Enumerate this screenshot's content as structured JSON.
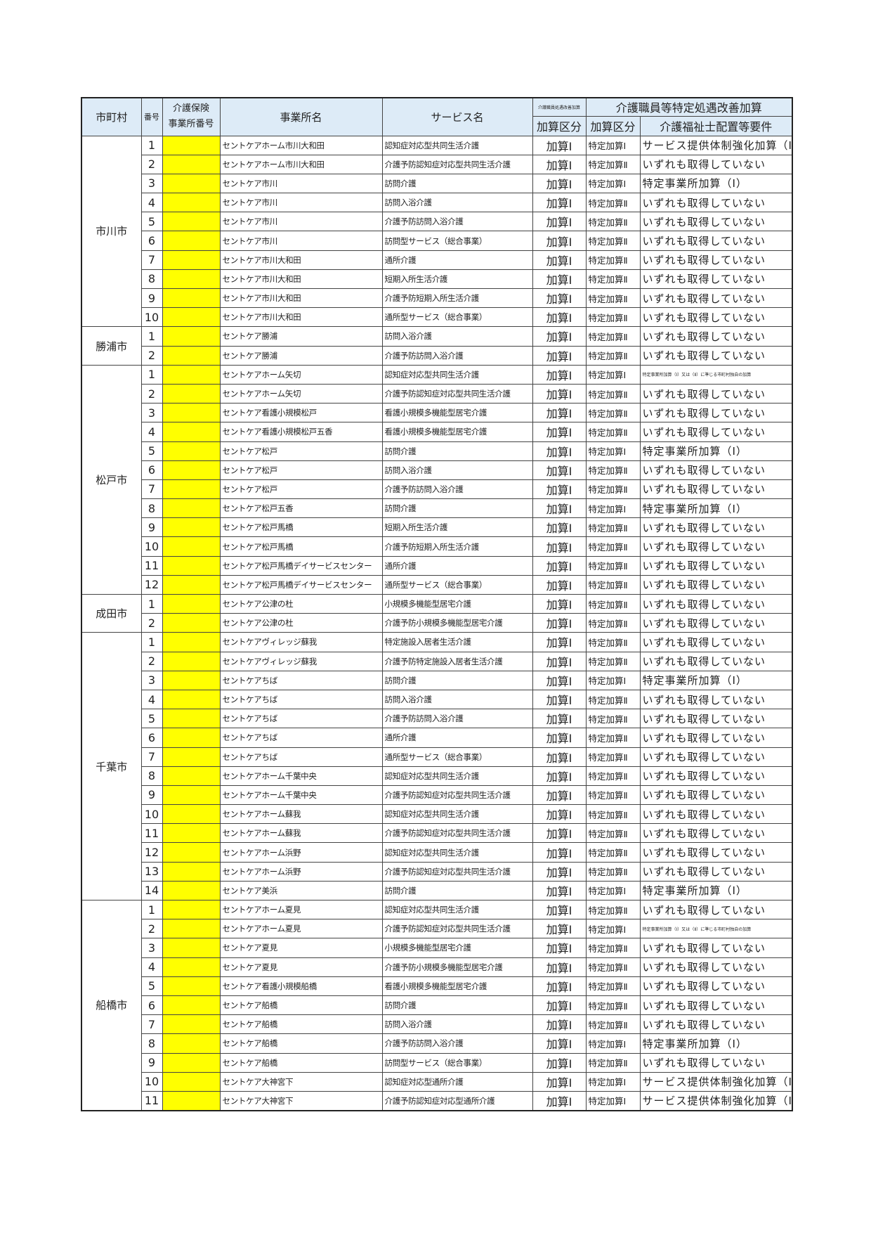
{
  "header": {
    "city": "市町村",
    "num": "番号",
    "code_line1": "介護保険",
    "code_line2": "事業所番号",
    "office": "事業所名",
    "service": "サービス名",
    "kaizen_small": "介護職員処遇改善加算",
    "tokutei_group": "介護職員等特定処遇改善加算",
    "kasan_kubun": "加算区分",
    "tokutei_kubun": "加算区分",
    "requirement": "介護福祉士配置等要件"
  },
  "colors": {
    "header_bg": "#ddebf7",
    "code_fill": "#ffff00"
  },
  "groups": [
    {
      "city": "市川市",
      "rows": [
        {
          "num": "1",
          "office": "セントケアホーム市川大和田",
          "service": "認知症対応型共同生活介護",
          "kasan": "加算Ⅰ",
          "tokutei": "特定加算Ⅰ",
          "req": "サービス提供体制強化加算（Ⅱ）"
        },
        {
          "num": "2",
          "office": "セントケアホーム市川大和田",
          "service": "介護予防認知症対応型共同生活介護",
          "kasan": "加算Ⅰ",
          "tokutei": "特定加算Ⅱ",
          "req": "いずれも取得していない"
        },
        {
          "num": "3",
          "office": "セントケア市川",
          "service": "訪問介護",
          "kasan": "加算Ⅰ",
          "tokutei": "特定加算Ⅰ",
          "req": "特定事業所加算（Ⅰ）"
        },
        {
          "num": "4",
          "office": "セントケア市川",
          "service": "訪問入浴介護",
          "kasan": "加算Ⅰ",
          "tokutei": "特定加算Ⅱ",
          "req": "いずれも取得していない"
        },
        {
          "num": "5",
          "office": "セントケア市川",
          "service": "介護予防訪問入浴介護",
          "kasan": "加算Ⅰ",
          "tokutei": "特定加算Ⅱ",
          "req": "いずれも取得していない"
        },
        {
          "num": "6",
          "office": "セントケア市川",
          "service": "訪問型サービス（総合事業）",
          "kasan": "加算Ⅰ",
          "tokutei": "特定加算Ⅱ",
          "req": "いずれも取得していない"
        },
        {
          "num": "7",
          "office": "セントケア市川大和田",
          "service": "通所介護",
          "kasan": "加算Ⅰ",
          "tokutei": "特定加算Ⅱ",
          "req": "いずれも取得していない"
        },
        {
          "num": "8",
          "office": "セントケア市川大和田",
          "service": "短期入所生活介護",
          "kasan": "加算Ⅰ",
          "tokutei": "特定加算Ⅱ",
          "req": "いずれも取得していない"
        },
        {
          "num": "9",
          "office": "セントケア市川大和田",
          "service": "介護予防短期入所生活介護",
          "kasan": "加算Ⅰ",
          "tokutei": "特定加算Ⅱ",
          "req": "いずれも取得していない"
        },
        {
          "num": "10",
          "office": "セントケア市川大和田",
          "service": "通所型サービス（総合事業）",
          "kasan": "加算Ⅰ",
          "tokutei": "特定加算Ⅱ",
          "req": "いずれも取得していない"
        }
      ]
    },
    {
      "city": "勝浦市",
      "rows": [
        {
          "num": "1",
          "office": "セントケア勝浦",
          "service": "訪問入浴介護",
          "kasan": "加算Ⅰ",
          "tokutei": "特定加算Ⅱ",
          "req": "いずれも取得していない"
        },
        {
          "num": "2",
          "office": "セントケア勝浦",
          "service": "介護予防訪問入浴介護",
          "kasan": "加算Ⅰ",
          "tokutei": "特定加算Ⅱ",
          "req": "いずれも取得していない"
        }
      ]
    },
    {
      "city": "松戸市",
      "rows": [
        {
          "num": "1",
          "office": "セントケアホーム矢切",
          "service": "認知症対応型共同生活介護",
          "kasan": "加算Ⅰ",
          "tokutei": "特定加算Ⅰ",
          "req": "特定事業所加算（Ⅰ）又は（Ⅱ）に準じる市町村独自の加算",
          "tiny": true
        },
        {
          "num": "2",
          "office": "セントケアホーム矢切",
          "service": "介護予防認知症対応型共同生活介護",
          "kasan": "加算Ⅰ",
          "tokutei": "特定加算Ⅱ",
          "req": "いずれも取得していない"
        },
        {
          "num": "3",
          "office": "セントケア看護小規模松戸",
          "service": "看護小規模多機能型居宅介護",
          "kasan": "加算Ⅰ",
          "tokutei": "特定加算Ⅱ",
          "req": "いずれも取得していない"
        },
        {
          "num": "4",
          "office": "セントケア看護小規模松戸五香",
          "service": "看護小規模多機能型居宅介護",
          "kasan": "加算Ⅰ",
          "tokutei": "特定加算Ⅱ",
          "req": "いずれも取得していない"
        },
        {
          "num": "5",
          "office": "セントケア松戸",
          "service": "訪問介護",
          "kasan": "加算Ⅰ",
          "tokutei": "特定加算Ⅰ",
          "req": "特定事業所加算（Ⅰ）"
        },
        {
          "num": "6",
          "office": "セントケア松戸",
          "service": "訪問入浴介護",
          "kasan": "加算Ⅰ",
          "tokutei": "特定加算Ⅱ",
          "req": "いずれも取得していない"
        },
        {
          "num": "7",
          "office": "セントケア松戸",
          "service": "介護予防訪問入浴介護",
          "kasan": "加算Ⅰ",
          "tokutei": "特定加算Ⅱ",
          "req": "いずれも取得していない"
        },
        {
          "num": "8",
          "office": "セントケア松戸五香",
          "service": "訪問介護",
          "kasan": "加算Ⅰ",
          "tokutei": "特定加算Ⅰ",
          "req": "特定事業所加算（Ⅰ）"
        },
        {
          "num": "9",
          "office": "セントケア松戸馬橋",
          "service": "短期入所生活介護",
          "kasan": "加算Ⅰ",
          "tokutei": "特定加算Ⅱ",
          "req": "いずれも取得していない"
        },
        {
          "num": "10",
          "office": "セントケア松戸馬橋",
          "service": "介護予防短期入所生活介護",
          "kasan": "加算Ⅰ",
          "tokutei": "特定加算Ⅱ",
          "req": "いずれも取得していない"
        },
        {
          "num": "11",
          "office": "セントケア松戸馬橋デイサービスセンター",
          "service": "通所介護",
          "kasan": "加算Ⅰ",
          "tokutei": "特定加算Ⅱ",
          "req": "いずれも取得していない"
        },
        {
          "num": "12",
          "office": "セントケア松戸馬橋デイサービスセンター",
          "service": "通所型サービス（総合事業）",
          "kasan": "加算Ⅰ",
          "tokutei": "特定加算Ⅱ",
          "req": "いずれも取得していない"
        }
      ]
    },
    {
      "city": "成田市",
      "rows": [
        {
          "num": "1",
          "office": "セントケア公津の杜",
          "service": "小規模多機能型居宅介護",
          "kasan": "加算Ⅰ",
          "tokutei": "特定加算Ⅱ",
          "req": "いずれも取得していない"
        },
        {
          "num": "2",
          "office": "セントケア公津の杜",
          "service": "介護予防小規模多機能型居宅介護",
          "kasan": "加算Ⅰ",
          "tokutei": "特定加算Ⅱ",
          "req": "いずれも取得していない"
        }
      ]
    },
    {
      "city": "千葉市",
      "rows": [
        {
          "num": "1",
          "office": "セントケアヴィレッジ蘇我",
          "service": "特定施設入居者生活介護",
          "kasan": "加算Ⅰ",
          "tokutei": "特定加算Ⅱ",
          "req": "いずれも取得していない"
        },
        {
          "num": "2",
          "office": "セントケアヴィレッジ蘇我",
          "service": "介護予防特定施設入居者生活介護",
          "kasan": "加算Ⅰ",
          "tokutei": "特定加算Ⅱ",
          "req": "いずれも取得していない"
        },
        {
          "num": "3",
          "office": "セントケアちば",
          "service": "訪問介護",
          "kasan": "加算Ⅰ",
          "tokutei": "特定加算Ⅰ",
          "req": "特定事業所加算（Ⅰ）"
        },
        {
          "num": "4",
          "office": "セントケアちば",
          "service": "訪問入浴介護",
          "kasan": "加算Ⅰ",
          "tokutei": "特定加算Ⅱ",
          "req": "いずれも取得していない"
        },
        {
          "num": "5",
          "office": "セントケアちば",
          "service": "介護予防訪問入浴介護",
          "kasan": "加算Ⅰ",
          "tokutei": "特定加算Ⅱ",
          "req": "いずれも取得していない"
        },
        {
          "num": "6",
          "office": "セントケアちば",
          "service": "通所介護",
          "kasan": "加算Ⅰ",
          "tokutei": "特定加算Ⅱ",
          "req": "いずれも取得していない"
        },
        {
          "num": "7",
          "office": "セントケアちば",
          "service": "通所型サービス（総合事業）",
          "kasan": "加算Ⅰ",
          "tokutei": "特定加算Ⅱ",
          "req": "いずれも取得していない"
        },
        {
          "num": "8",
          "office": "セントケアホーム千葉中央",
          "service": "認知症対応型共同生活介護",
          "kasan": "加算Ⅰ",
          "tokutei": "特定加算Ⅱ",
          "req": "いずれも取得していない"
        },
        {
          "num": "9",
          "office": "セントケアホーム千葉中央",
          "service": "介護予防認知症対応型共同生活介護",
          "kasan": "加算Ⅰ",
          "tokutei": "特定加算Ⅱ",
          "req": "いずれも取得していない"
        },
        {
          "num": "10",
          "office": "セントケアホーム蘇我",
          "service": "認知症対応型共同生活介護",
          "kasan": "加算Ⅰ",
          "tokutei": "特定加算Ⅱ",
          "req": "いずれも取得していない"
        },
        {
          "num": "11",
          "office": "セントケアホーム蘇我",
          "service": "介護予防認知症対応型共同生活介護",
          "kasan": "加算Ⅰ",
          "tokutei": "特定加算Ⅱ",
          "req": "いずれも取得していない"
        },
        {
          "num": "12",
          "office": "セントケアホーム浜野",
          "service": "認知症対応型共同生活介護",
          "kasan": "加算Ⅰ",
          "tokutei": "特定加算Ⅱ",
          "req": "いずれも取得していない"
        },
        {
          "num": "13",
          "office": "セントケアホーム浜野",
          "service": "介護予防認知症対応型共同生活介護",
          "kasan": "加算Ⅰ",
          "tokutei": "特定加算Ⅱ",
          "req": "いずれも取得していない"
        },
        {
          "num": "14",
          "office": "セントケア美浜",
          "service": "訪問介護",
          "kasan": "加算Ⅰ",
          "tokutei": "特定加算Ⅰ",
          "req": "特定事業所加算（Ⅰ）"
        }
      ]
    },
    {
      "city": "船橋市",
      "rows": [
        {
          "num": "1",
          "office": "セントケアホーム夏見",
          "service": "認知症対応型共同生活介護",
          "kasan": "加算Ⅰ",
          "tokutei": "特定加算Ⅱ",
          "req": "いずれも取得していない"
        },
        {
          "num": "2",
          "office": "セントケアホーム夏見",
          "service": "介護予防認知症対応型共同生活介護",
          "kasan": "加算Ⅰ",
          "tokutei": "特定加算Ⅰ",
          "req": "特定事業所加算（Ⅰ）又は（Ⅱ）に準じる市町村独自の加算",
          "tiny": true
        },
        {
          "num": "3",
          "office": "セントケア夏見",
          "service": "小規模多機能型居宅介護",
          "kasan": "加算Ⅰ",
          "tokutei": "特定加算Ⅱ",
          "req": "いずれも取得していない"
        },
        {
          "num": "4",
          "office": "セントケア夏見",
          "service": "介護予防小規模多機能型居宅介護",
          "kasan": "加算Ⅰ",
          "tokutei": "特定加算Ⅱ",
          "req": "いずれも取得していない"
        },
        {
          "num": "5",
          "office": "セントケア看護小規模船橋",
          "service": "看護小規模多機能型居宅介護",
          "kasan": "加算Ⅰ",
          "tokutei": "特定加算Ⅱ",
          "req": "いずれも取得していない"
        },
        {
          "num": "6",
          "office": "セントケア船橋",
          "service": "訪問介護",
          "kasan": "加算Ⅰ",
          "tokutei": "特定加算Ⅱ",
          "req": "いずれも取得していない"
        },
        {
          "num": "7",
          "office": "セントケア船橋",
          "service": "訪問入浴介護",
          "kasan": "加算Ⅰ",
          "tokutei": "特定加算Ⅱ",
          "req": "いずれも取得していない"
        },
        {
          "num": "8",
          "office": "セントケア船橋",
          "service": "介護予防訪問入浴介護",
          "kasan": "加算Ⅰ",
          "tokutei": "特定加算Ⅰ",
          "req": "特定事業所加算（Ⅰ）"
        },
        {
          "num": "9",
          "office": "セントケア船橋",
          "service": "訪問型サービス（総合事業）",
          "kasan": "加算Ⅰ",
          "tokutei": "特定加算Ⅱ",
          "req": "いずれも取得していない"
        },
        {
          "num": "10",
          "office": "セントケア大神宮下",
          "service": "認知症対応型通所介護",
          "kasan": "加算Ⅰ",
          "tokutei": "特定加算Ⅰ",
          "req": "サービス提供体制強化加算（Ⅱ）"
        },
        {
          "num": "11",
          "office": "セントケア大神宮下",
          "service": "介護予防認知症対応型通所介護",
          "kasan": "加算Ⅰ",
          "tokutei": "特定加算Ⅰ",
          "req": "サービス提供体制強化加算（Ⅱ）"
        }
      ]
    }
  ]
}
